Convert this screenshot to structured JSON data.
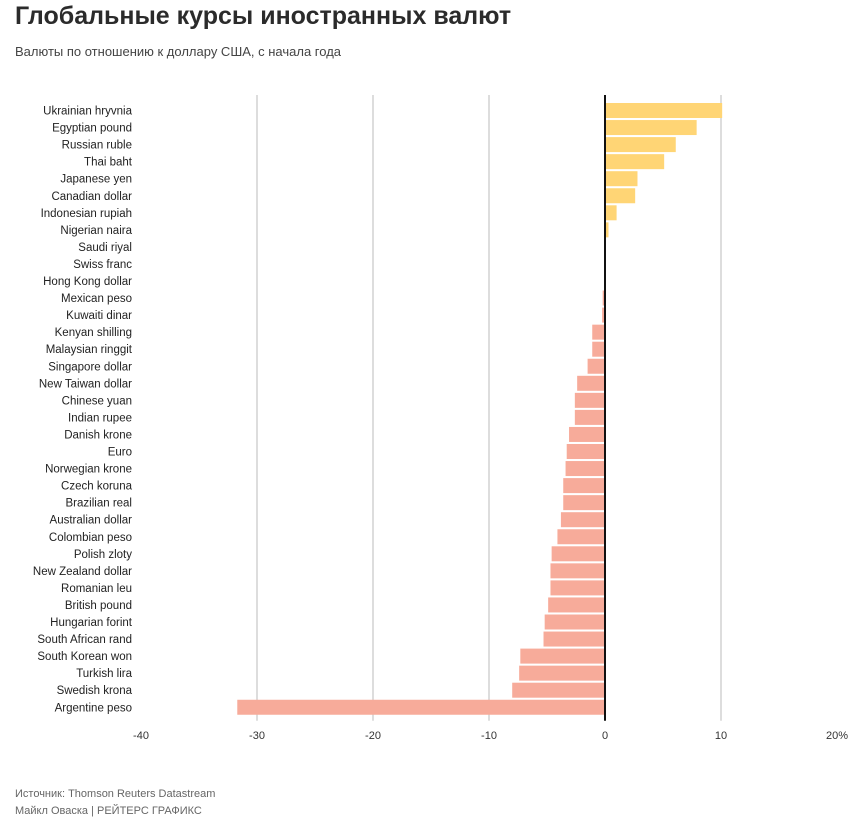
{
  "title": "Глобальные курсы иностранных валют",
  "subtitle": "Валюты по отношению к доллару США, с начала года",
  "footer": {
    "source": "Источник: Thomson Reuters Datastream",
    "credit": "Майкл Оваска | РЕЙТЕРС ГРАФИКС"
  },
  "colors": {
    "positive": "#ffd575",
    "negative": "#f7ab9a",
    "grid": "#bbbbbb",
    "zero": "#111111"
  },
  "chart_data": {
    "type": "bar",
    "orientation": "horizontal",
    "title": "Глобальные курсы иностранных валют",
    "xlim": [
      -40,
      20
    ],
    "xticks": [
      -40,
      -30,
      -20,
      -10,
      0,
      10,
      20
    ],
    "xtick_labels": [
      "-40",
      "-30",
      "-20",
      "-10",
      "0",
      "10",
      "20%"
    ],
    "grid": true,
    "categories": [
      "Ukrainian hryvnia",
      "Egyptian pound",
      "Russian ruble",
      "Thai baht",
      "Japanese yen",
      "Canadian dollar",
      "Indonesian rupiah",
      "Nigerian naira",
      "Saudi riyal",
      "Swiss franc",
      "Hong Kong dollar",
      "Mexican peso",
      "Kuwaiti dinar",
      "Kenyan shilling",
      "Malaysian ringgit",
      "Singapore dollar",
      "New Taiwan dollar",
      "Chinese yuan",
      "Indian rupee",
      "Danish krone",
      "Euro",
      "Norwegian krone",
      "Czech koruna",
      "Brazilian real",
      "Australian dollar",
      "Colombian peso",
      "Polish zloty",
      "New Zealand dollar",
      "Romanian leu",
      "British pound",
      "Hungarian forint",
      "South African rand",
      "South Korean won",
      "Turkish lira",
      "Swedish krona",
      "Argentine peso"
    ],
    "values": [
      10.1,
      7.9,
      6.1,
      5.1,
      2.8,
      2.6,
      1.0,
      0.3,
      0,
      0,
      -0.05,
      -0.2,
      -0.25,
      -1.1,
      -1.1,
      -1.5,
      -2.4,
      -2.6,
      -2.6,
      -3.1,
      -3.3,
      -3.4,
      -3.6,
      -3.6,
      -3.8,
      -4.1,
      -4.6,
      -4.7,
      -4.7,
      -4.9,
      -5.2,
      -5.3,
      -7.3,
      -7.4,
      -8.0,
      -31.7
    ]
  }
}
